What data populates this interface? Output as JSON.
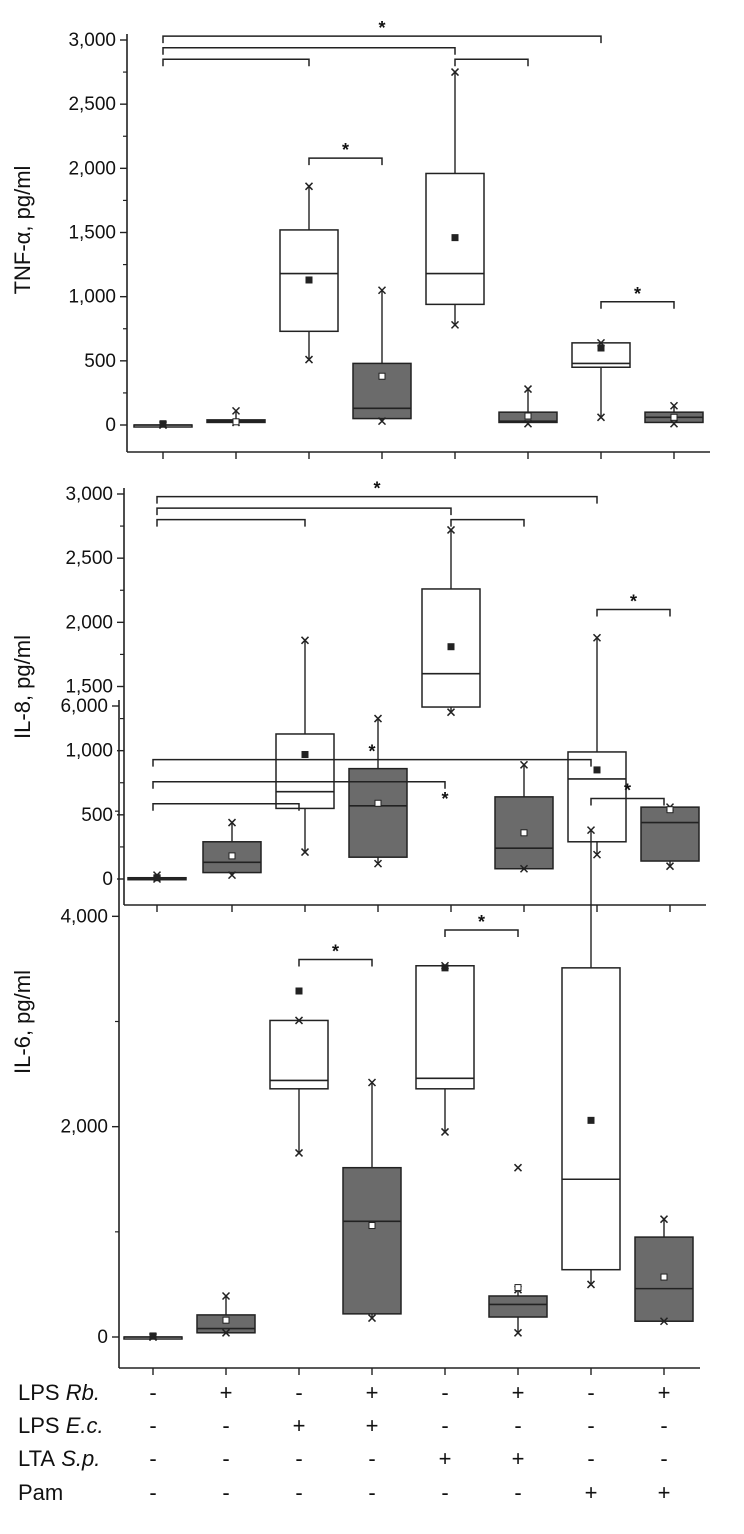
{
  "chart_data": [
    {
      "type": "box",
      "ylabel": "TNF-α, pg/ml",
      "ylim": [
        0,
        3000
      ],
      "yticks": [
        0,
        500,
        1000,
        1500,
        2000,
        2500,
        3000
      ],
      "ytick_labels": [
        "0",
        "500",
        "1,000",
        "1,500",
        "2,000",
        "2,500",
        "3,000"
      ],
      "box_fills": [
        "#ffffff",
        "#6b6b6b",
        "#ffffff",
        "#6b6b6b",
        "#ffffff",
        "#6b6b6b",
        "#ffffff",
        "#6b6b6b"
      ],
      "boxes": [
        {
          "min": 0,
          "q1": 0,
          "median": 0,
          "q3": 0,
          "max": 0,
          "mean": 10
        },
        {
          "min": 20,
          "q1": 20,
          "median": 30,
          "q3": 40,
          "max": 110,
          "mean": 25
        },
        {
          "min": 510,
          "q1": 730,
          "median": 1180,
          "q3": 1520,
          "max": 1860,
          "mean": 1130
        },
        {
          "min": 30,
          "q1": 50,
          "median": 130,
          "q3": 480,
          "max": 1050,
          "mean": 380
        },
        {
          "min": 780,
          "q1": 940,
          "median": 1180,
          "q3": 1960,
          "max": 2750,
          "mean": 1460
        },
        {
          "min": 10,
          "q1": 20,
          "median": 30,
          "q3": 100,
          "max": 280,
          "mean": 70
        },
        {
          "min": 60,
          "q1": 450,
          "median": 480,
          "q3": 640,
          "max": 640,
          "mean": 600
        },
        {
          "min": 10,
          "q1": 20,
          "median": 60,
          "q3": 100,
          "max": 150,
          "mean": 60
        }
      ],
      "brackets": [
        {
          "from": 1,
          "to": 3,
          "y": 2850,
          "label": ""
        },
        {
          "from": 1,
          "to": 5,
          "y": 2940,
          "label": ""
        },
        {
          "from": 1,
          "to": 7,
          "y": 3030,
          "label": "*"
        },
        {
          "from": 5,
          "to": 6,
          "y": 2850,
          "label": ""
        },
        {
          "from": 3,
          "to": 4,
          "y": 2080,
          "label": "*"
        },
        {
          "from": 7,
          "to": 8,
          "y": 960,
          "label": "*"
        }
      ]
    },
    {
      "type": "box",
      "ylabel": "IL-8, pg/ml",
      "ylim": [
        0,
        3000
      ],
      "yticks": [
        0,
        500,
        1000,
        1500,
        2000,
        2500,
        3000
      ],
      "ytick_labels": [
        "0",
        "500",
        "1,000",
        "1,500",
        "2,000",
        "2,500",
        "3,000"
      ],
      "box_fills": [
        "#ffffff",
        "#6b6b6b",
        "#ffffff",
        "#6b6b6b",
        "#ffffff",
        "#6b6b6b",
        "#ffffff",
        "#6b6b6b"
      ],
      "boxes": [
        {
          "min": 0,
          "q1": 0,
          "median": 0,
          "q3": 10,
          "max": 30,
          "mean": 10
        },
        {
          "min": 30,
          "q1": 50,
          "median": 130,
          "q3": 290,
          "max": 440,
          "mean": 180
        },
        {
          "min": 210,
          "q1": 550,
          "median": 680,
          "q3": 1130,
          "max": 1860,
          "mean": 970
        },
        {
          "min": 120,
          "q1": 170,
          "median": 570,
          "q3": 860,
          "max": 1250,
          "mean": 590
        },
        {
          "min": 1300,
          "q1": 1340,
          "median": 1600,
          "q3": 2260,
          "max": 2720,
          "mean": 1810
        },
        {
          "min": 80,
          "q1": 80,
          "median": 240,
          "q3": 640,
          "max": 890,
          "mean": 360
        },
        {
          "min": 190,
          "q1": 290,
          "median": 780,
          "q3": 990,
          "max": 1880,
          "mean": 850
        },
        {
          "min": 100,
          "q1": 140,
          "median": 440,
          "q3": 560,
          "max": 560,
          "mean": 540
        }
      ],
      "brackets": [
        {
          "from": 1,
          "to": 3,
          "y": 2800,
          "label": ""
        },
        {
          "from": 1,
          "to": 5,
          "y": 2890,
          "label": ""
        },
        {
          "from": 1,
          "to": 7,
          "y": 2980,
          "label": "*"
        },
        {
          "from": 5,
          "to": 6,
          "y": 2800,
          "label": ""
        },
        {
          "from": 7,
          "to": 8,
          "y": 2100,
          "label": "*"
        }
      ]
    },
    {
      "type": "box",
      "ylabel": "IL-6, pg/ml",
      "ylim": [
        0,
        6000
      ],
      "yticks": [
        0,
        2000,
        4000,
        6000
      ],
      "ytick_labels": [
        "0",
        "2,000",
        "4,000",
        "6,000"
      ],
      "box_fills": [
        "#ffffff",
        "#6b6b6b",
        "#ffffff",
        "#6b6b6b",
        "#ffffff",
        "#6b6b6b",
        "#ffffff",
        "#6b6b6b"
      ],
      "boxes": [
        {
          "min": 0,
          "q1": 0,
          "median": 0,
          "q3": 0,
          "max": 0,
          "mean": 10
        },
        {
          "min": 40,
          "q1": 40,
          "median": 80,
          "q3": 210,
          "max": 390,
          "mean": 160
        },
        {
          "min": 1750,
          "q1": 2360,
          "median": 2440,
          "q3": 3010,
          "max": 3010,
          "mean": 3290
        },
        {
          "min": 180,
          "q1": 220,
          "median": 1100,
          "q3": 1610,
          "max": 2420,
          "mean": 1060
        },
        {
          "min": 1950,
          "q1": 2360,
          "median": 2460,
          "q3": 3530,
          "max": 3530,
          "mean": 3510
        },
        {
          "min": 40,
          "q1": 190,
          "median": 310,
          "q3": 390,
          "max": 450,
          "mean": 470
        },
        {
          "min": 500,
          "q1": 640,
          "median": 1500,
          "q3": 3510,
          "max": 4820,
          "mean": 2060
        },
        {
          "min": 150,
          "q1": 150,
          "median": 460,
          "q3": 950,
          "max": 1120,
          "mean": 570
        }
      ],
      "outliers": [
        {
          "box": 6,
          "value": 1610
        }
      ],
      "brackets": [
        {
          "from": 1,
          "to": 3,
          "y": 5070,
          "label": ""
        },
        {
          "from": 1,
          "to": 5,
          "y": 5280,
          "label": ""
        },
        {
          "from": 1,
          "to": 7,
          "y": 5490,
          "label": "*"
        },
        {
          "from": 5,
          "to": 5,
          "y": 5040,
          "label": "*"
        },
        {
          "from": 3,
          "to": 4,
          "y": 3590,
          "label": "*"
        },
        {
          "from": 5,
          "to": 6,
          "y": 3870,
          "label": "*"
        },
        {
          "from": 7,
          "to": 8,
          "y": 5120,
          "label": "*"
        }
      ]
    }
  ],
  "conditions": [
    {
      "prefix": "LPS",
      "italic": "Rb.",
      "signs": [
        "-",
        "+",
        "-",
        "+",
        "-",
        "+",
        "-",
        "+"
      ]
    },
    {
      "prefix": "LPS",
      "italic": "E.c.",
      "signs": [
        "-",
        "-",
        "+",
        "+",
        "-",
        "-",
        "-",
        "-"
      ]
    },
    {
      "prefix": "LTA",
      "italic": "S.p.",
      "signs": [
        "-",
        "-",
        "-",
        "-",
        "+",
        "+",
        "-",
        "-"
      ]
    },
    {
      "prefix": "Pam",
      "italic": "",
      "signs": [
        "-",
        "-",
        "-",
        "-",
        "-",
        "-",
        "+",
        "+"
      ]
    }
  ]
}
